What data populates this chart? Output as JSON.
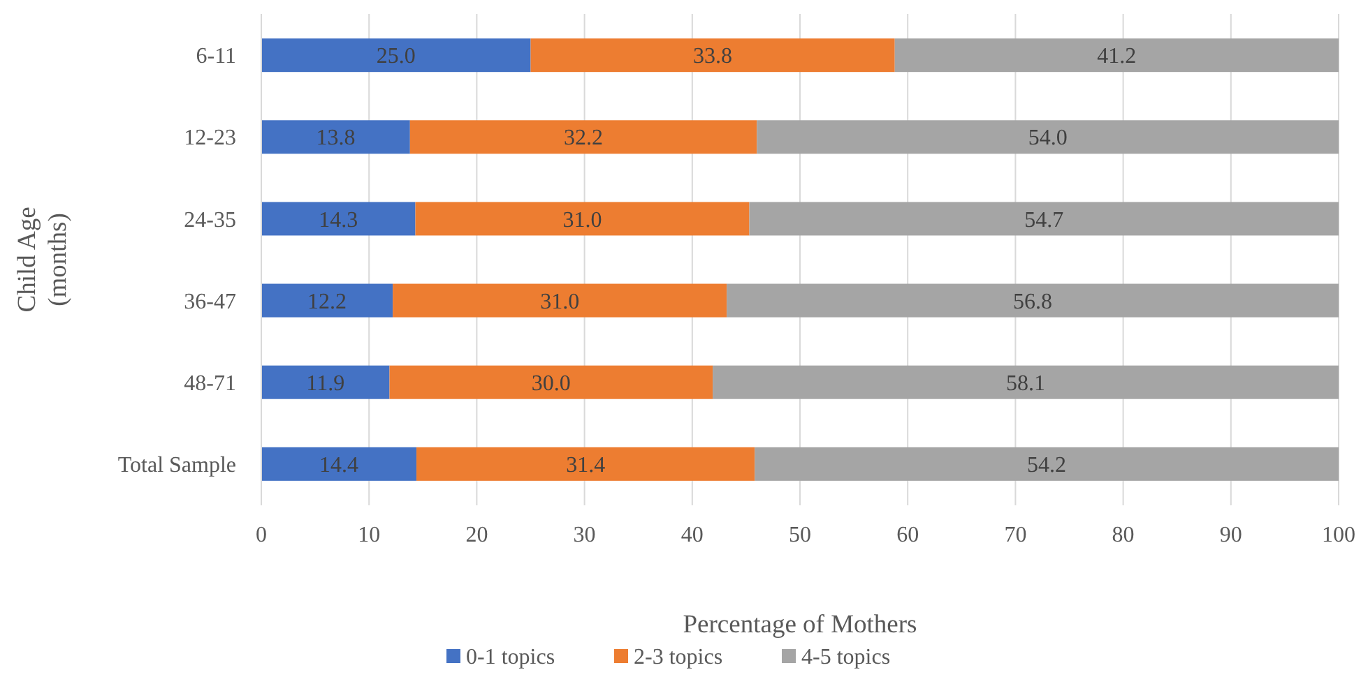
{
  "chart_data": {
    "type": "bar",
    "orientation": "horizontal",
    "stacked": true,
    "xlabel": "Percentage of Mothers",
    "ylabel": "Child Age\n(months)",
    "categories": [
      "6-11",
      "12-23",
      "24-35",
      "36-47",
      "48-71",
      "Total Sample"
    ],
    "series": [
      {
        "name": "0-1 topics",
        "color": "#4472c4",
        "values": [
          25.0,
          13.8,
          14.3,
          12.2,
          11.9,
          14.4
        ]
      },
      {
        "name": "2-3 topics",
        "color": "#ed7d31",
        "values": [
          33.8,
          32.2,
          31.0,
          31.0,
          30.0,
          31.4
        ]
      },
      {
        "name": "4-5 topics",
        "color": "#a5a5a5",
        "values": [
          41.2,
          54.0,
          54.7,
          56.8,
          58.1,
          54.2
        ]
      }
    ],
    "value_labels": [
      [
        "25.0",
        "13.8",
        "14.3",
        "12.2",
        "11.9",
        "14.4"
      ],
      [
        "33.8",
        "32.2",
        "31.0",
        "31.0",
        "30.0",
        "31.4"
      ],
      [
        "41.2",
        "54.0",
        "54.7",
        "56.8",
        "58.1",
        "54.2"
      ]
    ],
    "xlim": [
      0,
      100
    ],
    "xticks": [
      0,
      10,
      20,
      30,
      40,
      50,
      60,
      70,
      80,
      90,
      100
    ],
    "grid": "x",
    "legend": "bottom"
  }
}
